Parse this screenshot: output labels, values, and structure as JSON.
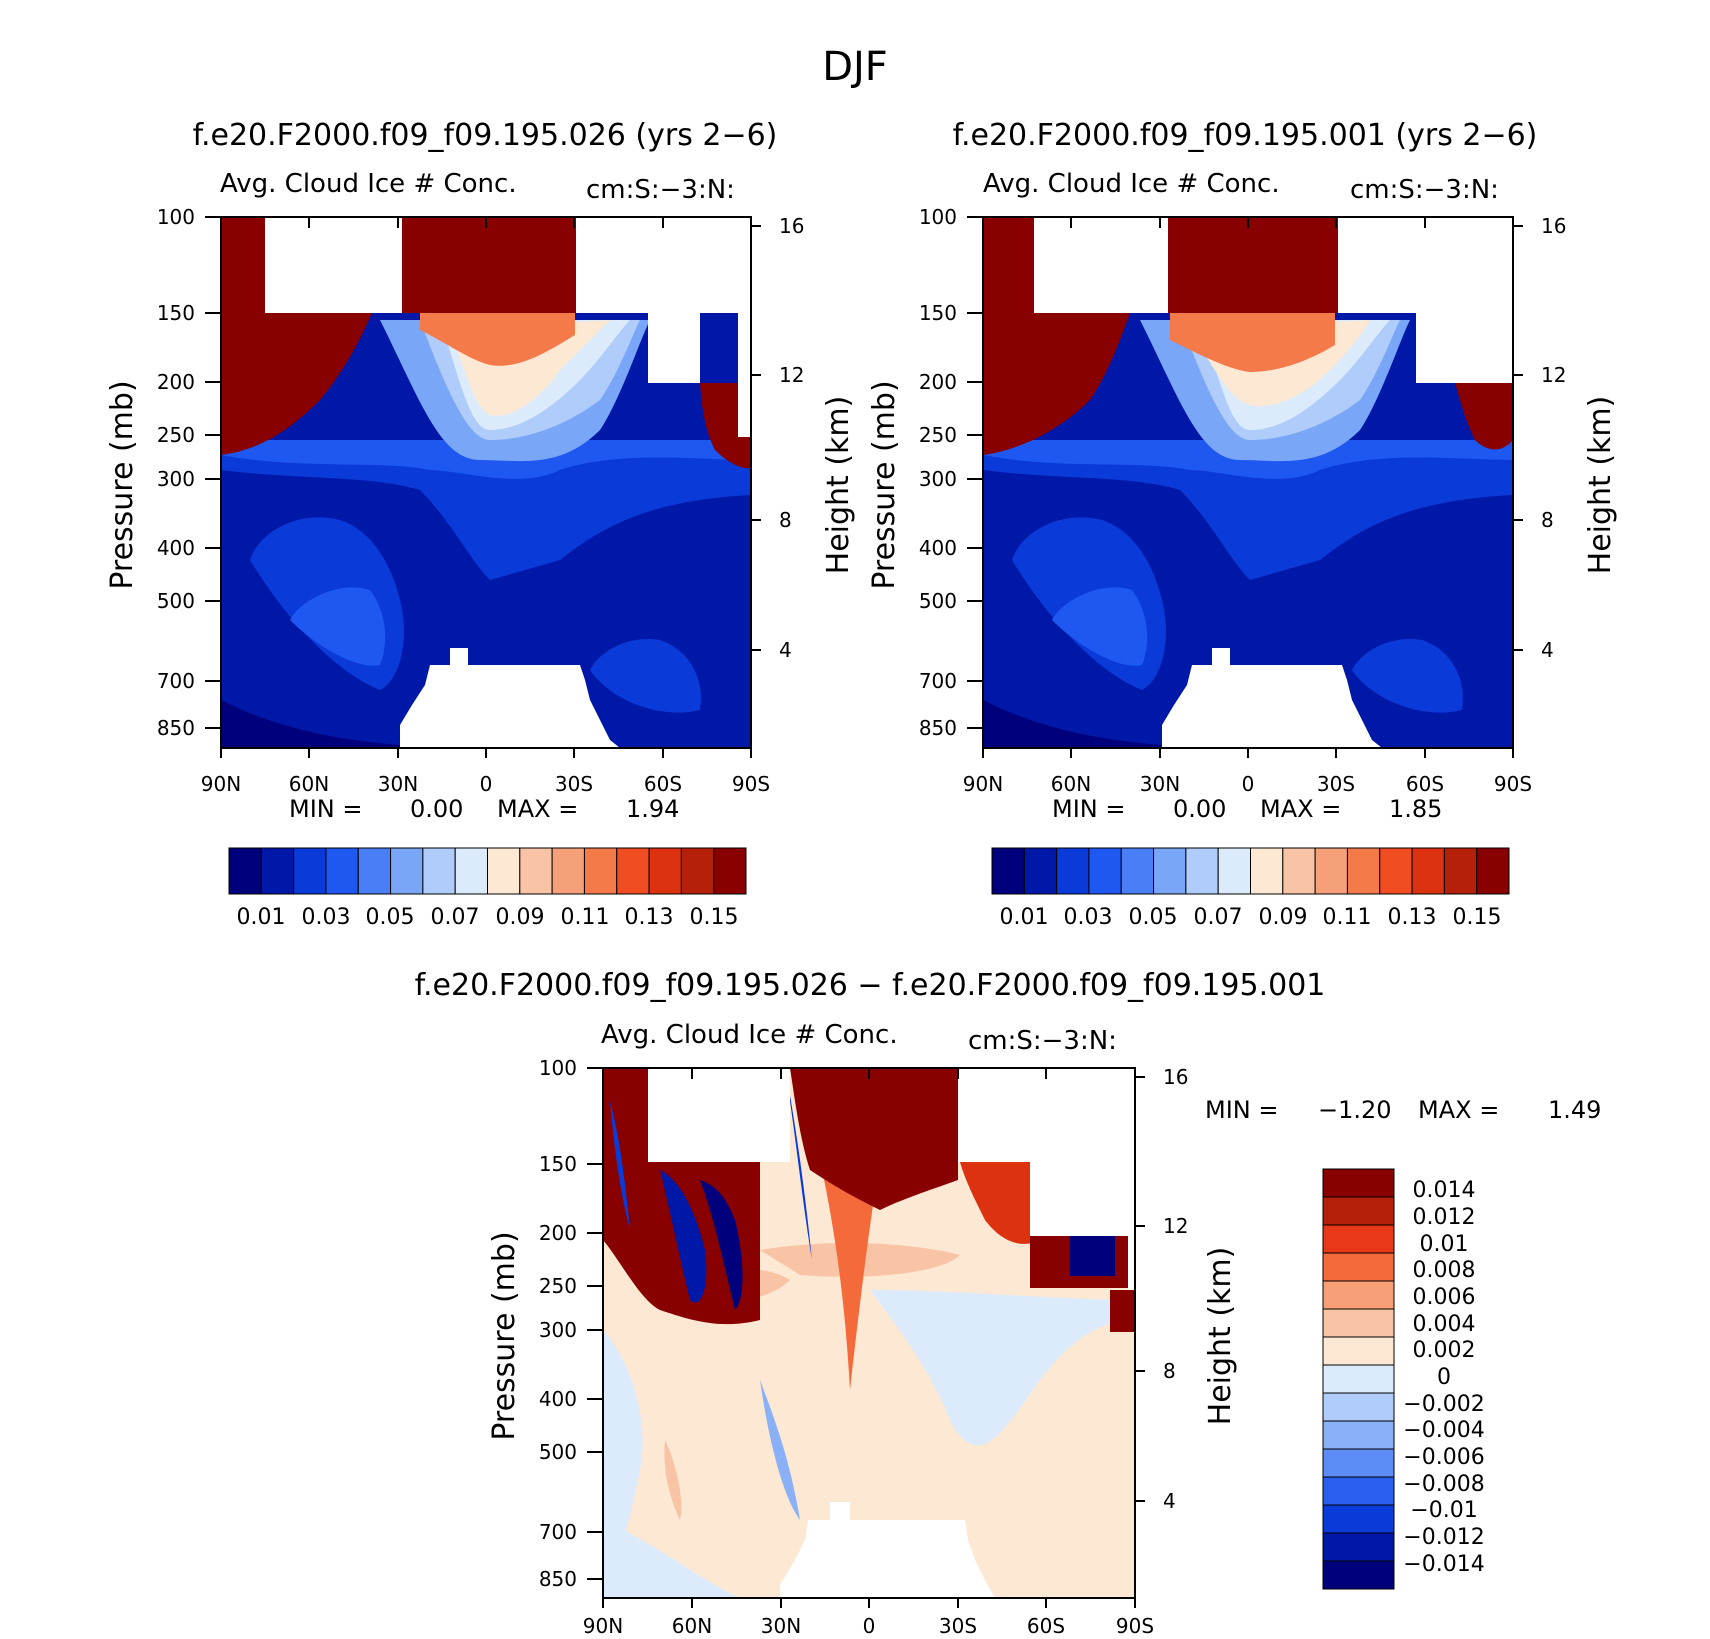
{
  "figure_title": "DJF",
  "chart_data": [
    {
      "type": "heatmap",
      "title": "f.e20.F2000.f09_f09.195.026 (yrs 2-6)",
      "subtitle_left": "Avg. Cloud Ice # Conc.",
      "subtitle_right": "cm:S:-3:N:",
      "ylabel": "Pressure (mb)",
      "y2label": "Height (km)",
      "x_ticks": [
        "90N",
        "60N",
        "30N",
        "0",
        "30S",
        "60S",
        "90S"
      ],
      "y_ticks": [
        "100",
        "150",
        "200",
        "250",
        "300",
        "400",
        "500",
        "700",
        "850"
      ],
      "y2_ticks": [
        "16",
        "12",
        "8",
        "4"
      ],
      "min_label": "MIN =",
      "min_value": "0.00",
      "max_label": "MAX =",
      "max_value": "1.94",
      "levels": [
        "0.01",
        "0.03",
        "0.05",
        "0.07",
        "0.09",
        "0.11",
        "0.13",
        "0.15"
      ],
      "colors": [
        "#00007c",
        "#0018a8",
        "#0a3ad8",
        "#1e58f0",
        "#4a7ef6",
        "#7aa6f8",
        "#b0ccfa",
        "#dcebfc",
        "#fde8d4",
        "#f9c4a6",
        "#f6a07a",
        "#f47a4a",
        "#f04e22",
        "#dc3210",
        "#b4200a",
        "#880000"
      ]
    },
    {
      "type": "heatmap",
      "title": "f.e20.F2000.f09_f09.195.001 (yrs 2-6)",
      "subtitle_left": "Avg. Cloud Ice # Conc.",
      "subtitle_right": "cm:S:-3:N:",
      "ylabel": "Pressure (mb)",
      "y2label": "Height (km)",
      "x_ticks": [
        "90N",
        "60N",
        "30N",
        "0",
        "30S",
        "60S",
        "90S"
      ],
      "y_ticks": [
        "100",
        "150",
        "200",
        "250",
        "300",
        "400",
        "500",
        "700",
        "850"
      ],
      "y2_ticks": [
        "16",
        "12",
        "8",
        "4"
      ],
      "min_label": "MIN =",
      "min_value": "0.00",
      "max_label": "MAX =",
      "max_value": "1.85",
      "levels": [
        "0.01",
        "0.03",
        "0.05",
        "0.07",
        "0.09",
        "0.11",
        "0.13",
        "0.15"
      ],
      "colors": [
        "#00007c",
        "#0018a8",
        "#0a3ad8",
        "#1e58f0",
        "#4a7ef6",
        "#7aa6f8",
        "#b0ccfa",
        "#dcebfc",
        "#fde8d4",
        "#f9c4a6",
        "#f6a07a",
        "#f47a4a",
        "#f04e22",
        "#dc3210",
        "#b4200a",
        "#880000"
      ]
    },
    {
      "type": "heatmap",
      "title": "f.e20.F2000.f09_f09.195.026 - f.e20.F2000.f09_f09.195.001",
      "subtitle_left": "Avg. Cloud Ice # Conc.",
      "subtitle_right": "cm:S:-3:N:",
      "ylabel": "Pressure (mb)",
      "y2label": "Height (km)",
      "x_ticks": [
        "90N",
        "60N",
        "30N",
        "0",
        "30S",
        "60S",
        "90S"
      ],
      "y_ticks": [
        "100",
        "150",
        "200",
        "250",
        "300",
        "400",
        "500",
        "700",
        "850"
      ],
      "y2_ticks": [
        "16",
        "12",
        "8",
        "4"
      ],
      "min_label": "MIN =",
      "min_value": "-1.20",
      "max_label": "MAX =",
      "max_value": "1.49",
      "levels": [
        "0.014",
        "0.012",
        "0.01",
        "0.008",
        "0.006",
        "0.004",
        "0.002",
        "0",
        "-0.002",
        "-0.004",
        "-0.006",
        "-0.008",
        "-0.01",
        "-0.012",
        "-0.014"
      ],
      "colors": [
        "#880000",
        "#b4200a",
        "#e83818",
        "#f46a3a",
        "#f7a078",
        "#f9c4a6",
        "#fde8d4",
        "#dcebfc",
        "#b0ccfa",
        "#8ab0f8",
        "#5c8cf6",
        "#2a60f0",
        "#0a3ad8",
        "#0018a8",
        "#00007c"
      ]
    }
  ]
}
